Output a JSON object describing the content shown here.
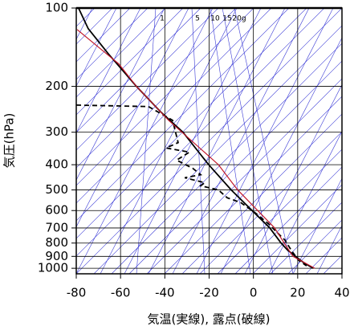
{
  "chart_data": {
    "type": "line",
    "x_label": "気温(実線), 露点(破線)",
    "y_label": "気圧(hPa)",
    "xlim": [
      -80,
      40
    ],
    "xticks": [
      -80,
      -60,
      -40,
      -20,
      0,
      20,
      40
    ],
    "ylim": [
      100,
      1050
    ],
    "yticks": [
      100,
      200,
      300,
      400,
      500,
      600,
      700,
      800,
      900,
      1000
    ],
    "log_y": true,
    "grid": true,
    "mixing_ratio_labels": [
      "1",
      "5",
      "10",
      "15",
      "20g"
    ],
    "series": [
      {
        "color": "#000000",
        "dash": false,
        "temperature": [
          -79,
          -74.6,
          -65.5,
          -52.8,
          -42,
          -31.8,
          -20.2,
          -10,
          -0.6,
          7.4,
          12.5,
          15.4,
          19,
          22.6,
          27
        ],
        "pressure": [
          100,
          120,
          150,
          200,
          250,
          300,
          400,
          500,
          600,
          700,
          800,
          850,
          900,
          950,
          1000
        ]
      },
      {
        "color": "#000000",
        "dash": true,
        "temperature": [
          -80,
          -47.4,
          -36.5,
          -34,
          -39.4,
          -28.9,
          -34.7,
          -27.4,
          -23.8,
          -31,
          -22,
          -23.8,
          -15.8,
          -11.8,
          -5.7,
          0.9,
          6.7,
          10.6,
          14.3,
          17.2,
          20.4,
          24
        ],
        "pressure": [
          236,
          239,
          270,
          329,
          345,
          358,
          384,
          413,
          437,
          449,
          469,
          482,
          500,
          536,
          559,
          613,
          673,
          727,
          780,
          855,
          931,
          979
        ]
      },
      {
        "color": "#c0182a",
        "dash": false,
        "temperature": [
          -79.6,
          -60.8,
          -52.8,
          -38.3,
          -15.8,
          -7.1,
          9.6,
          13.9,
          17.9,
          27.7
        ],
        "pressure": [
          121,
          164,
          200,
          270,
          400,
          500,
          700,
          800,
          900,
          1000
        ]
      }
    ]
  }
}
